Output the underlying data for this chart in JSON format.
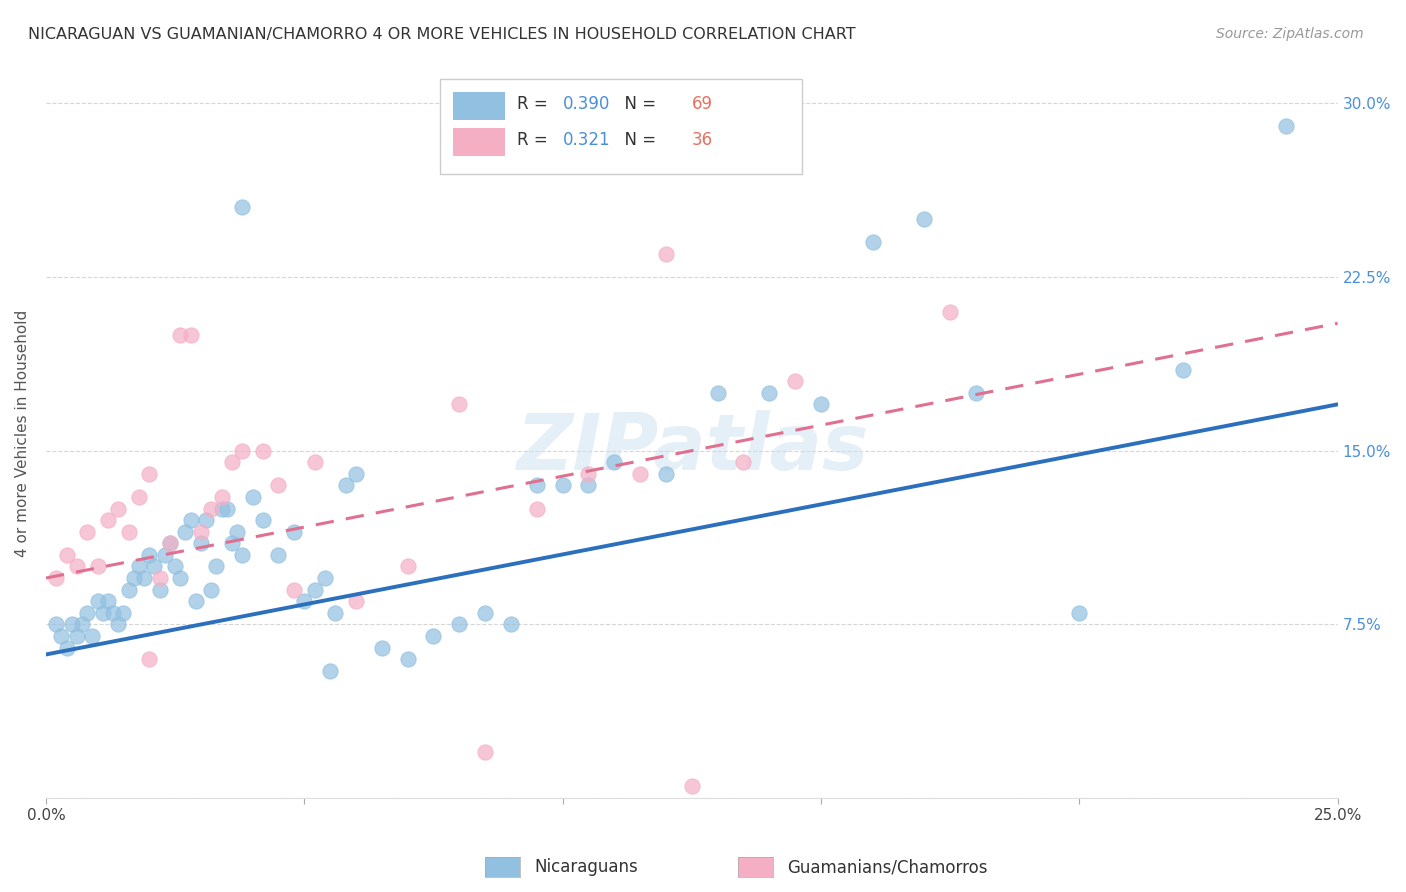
{
  "title": "NICARAGUAN VS GUAMANIAN/CHAMORRO 4 OR MORE VEHICLES IN HOUSEHOLD CORRELATION CHART",
  "source": "Source: ZipAtlas.com",
  "ylabel": "4 or more Vehicles in Household",
  "xlim": [
    0.0,
    25.0
  ],
  "ylim": [
    0.0,
    31.5
  ],
  "yticks": [
    0.0,
    7.5,
    15.0,
    22.5,
    30.0
  ],
  "xticks": [
    0.0,
    5.0,
    10.0,
    15.0,
    20.0,
    25.0
  ],
  "blue_R": 0.39,
  "blue_N": 69,
  "pink_R": 0.321,
  "pink_N": 36,
  "blue_color": "#92c0e0",
  "pink_color": "#f5afc5",
  "blue_line_color": "#2b6fbd",
  "pink_line_color": "#e07090",
  "legend_label_blue": "Nicaraguans",
  "legend_label_pink": "Guamanians/Chamorros",
  "watermark": "ZIPatlas",
  "blue_scatter_x": [
    0.2,
    0.3,
    0.4,
    0.5,
    0.6,
    0.7,
    0.8,
    0.9,
    1.0,
    1.1,
    1.2,
    1.3,
    1.4,
    1.5,
    1.6,
    1.7,
    1.8,
    1.9,
    2.0,
    2.1,
    2.2,
    2.3,
    2.4,
    2.5,
    2.6,
    2.7,
    2.8,
    2.9,
    3.0,
    3.1,
    3.2,
    3.3,
    3.4,
    3.5,
    3.6,
    3.7,
    3.8,
    4.0,
    4.2,
    4.5,
    4.8,
    5.0,
    5.2,
    5.4,
    5.6,
    5.8,
    6.0,
    6.5,
    7.0,
    7.5,
    8.0,
    8.5,
    9.0,
    9.5,
    10.0,
    10.5,
    11.0,
    12.0,
    13.0,
    14.0,
    15.0,
    16.0,
    17.0,
    18.0,
    20.0,
    22.0,
    24.0,
    5.5,
    3.8
  ],
  "blue_scatter_y": [
    7.5,
    7.0,
    6.5,
    7.5,
    7.0,
    7.5,
    8.0,
    7.0,
    8.5,
    8.0,
    8.5,
    8.0,
    7.5,
    8.0,
    9.0,
    9.5,
    10.0,
    9.5,
    10.5,
    10.0,
    9.0,
    10.5,
    11.0,
    10.0,
    9.5,
    11.5,
    12.0,
    8.5,
    11.0,
    12.0,
    9.0,
    10.0,
    12.5,
    12.5,
    11.0,
    11.5,
    10.5,
    13.0,
    12.0,
    10.5,
    11.5,
    8.5,
    9.0,
    9.5,
    8.0,
    13.5,
    14.0,
    6.5,
    6.0,
    7.0,
    7.5,
    8.0,
    7.5,
    13.5,
    13.5,
    13.5,
    14.5,
    14.0,
    17.5,
    17.5,
    17.0,
    24.0,
    25.0,
    17.5,
    8.0,
    18.5,
    29.0,
    5.5,
    25.5
  ],
  "pink_scatter_x": [
    0.2,
    0.4,
    0.6,
    0.8,
    1.0,
    1.2,
    1.4,
    1.6,
    1.8,
    2.0,
    2.2,
    2.4,
    2.6,
    2.8,
    3.0,
    3.2,
    3.4,
    3.6,
    3.8,
    4.2,
    4.8,
    5.2,
    6.0,
    7.0,
    8.0,
    9.5,
    10.5,
    11.5,
    12.0,
    13.5,
    14.5,
    17.5,
    4.5,
    2.0,
    8.5,
    12.5
  ],
  "pink_scatter_y": [
    9.5,
    10.5,
    10.0,
    11.5,
    10.0,
    12.0,
    12.5,
    11.5,
    13.0,
    14.0,
    9.5,
    11.0,
    20.0,
    20.0,
    11.5,
    12.5,
    13.0,
    14.5,
    15.0,
    15.0,
    9.0,
    14.5,
    8.5,
    10.0,
    17.0,
    12.5,
    14.0,
    14.0,
    23.5,
    14.5,
    18.0,
    21.0,
    13.5,
    6.0,
    2.0,
    0.5
  ],
  "blue_line_x0": 0.0,
  "blue_line_y0": 6.2,
  "blue_line_x1": 25.0,
  "blue_line_y1": 17.0,
  "pink_line_x0": 0.0,
  "pink_line_y0": 9.5,
  "pink_line_x1": 25.0,
  "pink_line_y1": 20.5
}
